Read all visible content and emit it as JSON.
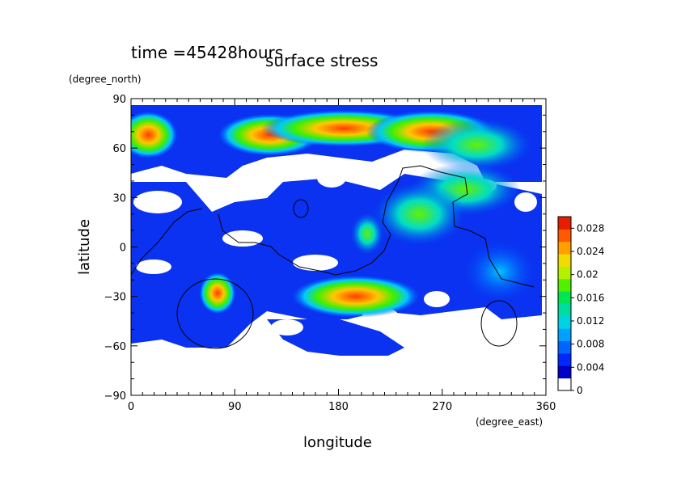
{
  "header": {
    "time_label": "time =45428hours",
    "title": "surface stress"
  },
  "chart_data": {
    "type": "heatmap",
    "title": "surface stress",
    "subtitle": "time =45428hours",
    "xlabel": "longitude",
    "ylabel": "latitude",
    "xunit": "(degree_east)",
    "yunit": "(degree_north)",
    "xlim": [
      0,
      360
    ],
    "ylim": [
      -90,
      90
    ],
    "xticks": [
      0,
      90,
      180,
      270,
      360
    ],
    "yticks": [
      -90,
      -60,
      -30,
      0,
      30,
      60,
      90
    ],
    "colorbar": {
      "min": 0,
      "max": 0.03,
      "ticks": [
        "0",
        "0.004",
        "0.008",
        "0.012",
        "0.016",
        "0.02",
        "0.024",
        "0.028"
      ],
      "colors": [
        "#ffffff",
        "#0000c8",
        "#0028ff",
        "#0064ff",
        "#00a0ff",
        "#00d2e6",
        "#00dca0",
        "#00e650",
        "#50f000",
        "#b4f000",
        "#f0dc00",
        "#ffa000",
        "#ff5a00",
        "#e61e00"
      ]
    },
    "grid": false,
    "legend": "right",
    "features": [
      {
        "lon": 15,
        "lat": 68,
        "value": 0.026,
        "rlon": 16,
        "rlat": 9
      },
      {
        "lon": 120,
        "lat": 68,
        "value": 0.024,
        "rlon": 28,
        "rlat": 8
      },
      {
        "lon": 185,
        "lat": 72,
        "value": 0.028,
        "rlon": 45,
        "rlat": 7
      },
      {
        "lon": 260,
        "lat": 70,
        "value": 0.022,
        "rlon": 35,
        "rlat": 8
      },
      {
        "lon": 300,
        "lat": 62,
        "value": 0.018,
        "rlon": 30,
        "rlat": 10
      },
      {
        "lon": 290,
        "lat": 35,
        "value": 0.016,
        "rlon": 30,
        "rlat": 10
      },
      {
        "lon": 75,
        "lat": -28,
        "value": 0.022,
        "rlon": 10,
        "rlat": 8
      },
      {
        "lon": 195,
        "lat": -30,
        "value": 0.026,
        "rlon": 35,
        "rlat": 8
      },
      {
        "lon": 205,
        "lat": 8,
        "value": 0.018,
        "rlon": 9,
        "rlat": 8
      },
      {
        "lon": 250,
        "lat": 20,
        "value": 0.014,
        "rlon": 25,
        "rlat": 12
      },
      {
        "lon": 320,
        "lat": -15,
        "value": 0.01,
        "rlon": 20,
        "rlat": 12
      }
    ]
  }
}
